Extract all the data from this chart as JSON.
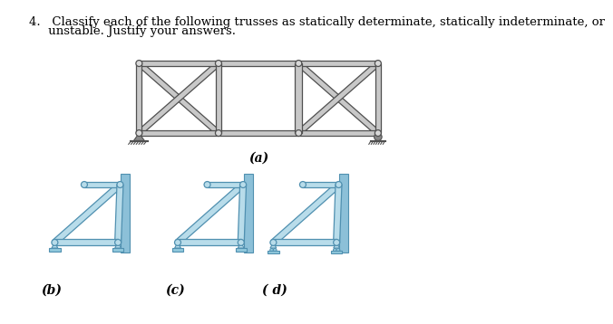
{
  "background_color": "#ffffff",
  "title_line1": "4.   Classify each of the following trusses as statically determinate, statically indeterminate, or",
  "title_line2": "     unstable. Justify your answers.",
  "title_fontsize": 9.5,
  "label_a": "(a)",
  "label_b": "(b)",
  "label_c": "(c)",
  "label_d": "( d)",
  "label_fontsize": 10,
  "gray_face": "#c8c8c8",
  "gray_edge": "#505050",
  "gray_dark": "#888888",
  "blue_face": "#b8dcea",
  "blue_edge": "#5090b0",
  "blue_wall": "#8cc0d8",
  "support_blue": "#90c8dc",
  "joint_gray_face": "#d8d8d8",
  "joint_gray_edge": "#505050"
}
